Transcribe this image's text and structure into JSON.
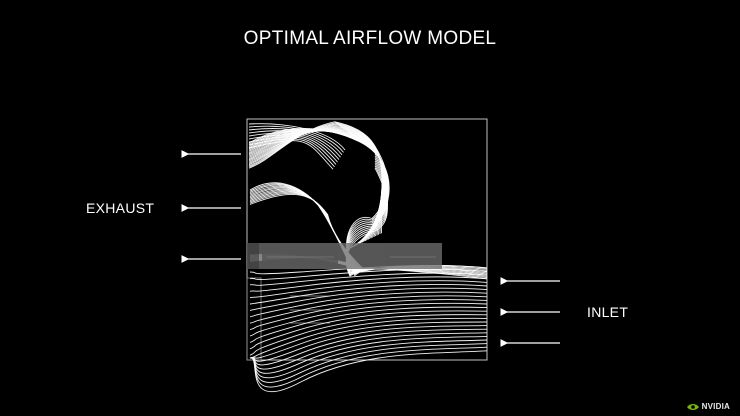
{
  "title": "OPTIMAL AIRFLOW MODEL",
  "labels": {
    "exhaust": "EXHAUST",
    "inlet": "INLET"
  },
  "arrows": {
    "exhaust_count": 3,
    "inlet_count": 3,
    "exhaust_direction": "left",
    "inlet_direction": "left"
  },
  "colors": {
    "background": "#000000",
    "streamline": "#ffffff",
    "frame": "#bfbfbf",
    "component": "#6e6e6e"
  },
  "logo": {
    "text": "NVIDIA",
    "icon": "nvidia-eye-icon",
    "accent": "#76b900"
  }
}
